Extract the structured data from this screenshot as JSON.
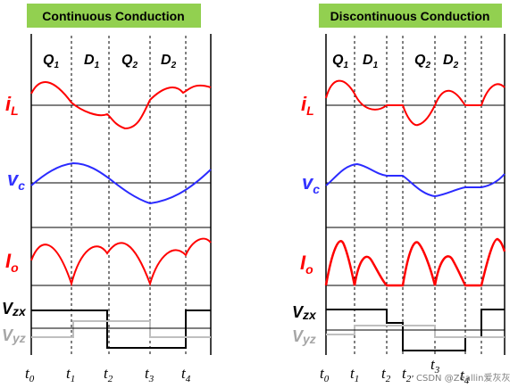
{
  "panels": [
    {
      "title": "Continuous Conduction",
      "phases": [
        {
          "main": "Q",
          "sub": "1"
        },
        {
          "main": "D",
          "sub": "1"
        },
        {
          "main": "Q",
          "sub": "2"
        },
        {
          "main": "D",
          "sub": "2"
        }
      ],
      "signals": [
        {
          "main": "i",
          "sub": "L",
          "color": "#ff0000"
        },
        {
          "main": "v",
          "sub": "c",
          "color": "#3333ff"
        },
        {
          "main": "I",
          "sub": "o",
          "color": "#ff0000"
        },
        {
          "main": "V",
          "sub": "zx",
          "color": "#000000"
        },
        {
          "main": "V",
          "sub": "yz",
          "color": "#a6a6a6"
        }
      ],
      "ticks": [
        {
          "main": "t",
          "sub": "0"
        },
        {
          "main": "t",
          "sub": "1"
        },
        {
          "main": "t",
          "sub": "2"
        },
        {
          "main": "t",
          "sub": "3"
        },
        {
          "main": "t",
          "sub": "4"
        }
      ]
    },
    {
      "title": "Discontinuous Conduction",
      "phases": [
        {
          "main": "Q",
          "sub": "1"
        },
        {
          "main": "D",
          "sub": "1"
        },
        {
          "main": "Q",
          "sub": "2"
        },
        {
          "main": "D",
          "sub": "2"
        }
      ],
      "signals": [
        {
          "main": "i",
          "sub": "L",
          "color": "#ff0000"
        },
        {
          "main": "v",
          "sub": "c",
          "color": "#3333ff"
        },
        {
          "main": "I",
          "sub": "o",
          "color": "#ff0000"
        },
        {
          "main": "V",
          "sub": "zx",
          "color": "#000000"
        },
        {
          "main": "V",
          "sub": "yz",
          "color": "#a6a6a6"
        }
      ],
      "ticks": [
        {
          "main": "t",
          "sub": "0"
        },
        {
          "main": "t",
          "sub": "1"
        },
        {
          "main": "t",
          "sub": "2"
        },
        {
          "main": "t",
          "sub": "2'"
        },
        {
          "main": "t",
          "sub": "3"
        },
        {
          "main": "t",
          "sub": "4"
        }
      ]
    }
  ],
  "watermark": "CSDN @Zeallin爱灰灰"
}
